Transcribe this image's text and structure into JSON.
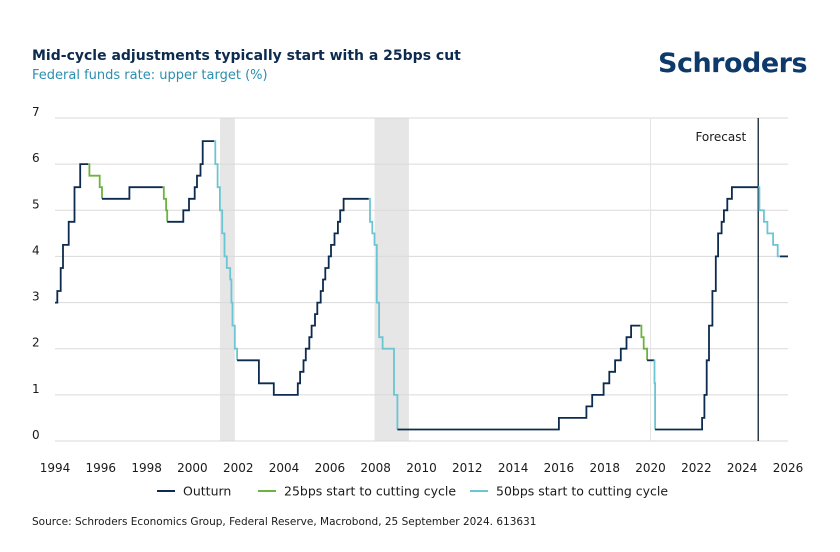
{
  "header": {
    "title": "Mid-cycle adjustments typically start with a 25bps cut",
    "subtitle": "Federal funds rate: upper target (%)",
    "logo": "Schroders"
  },
  "footer": {
    "source": "Source: Schroders Economics Group, Federal Reserve, Macrobond, 25 September 2024. 613631"
  },
  "chart_data": {
    "type": "line",
    "title": "Mid-cycle adjustments typically start with a 25bps cut",
    "subtitle": "Federal funds rate: upper target (%)",
    "xlim": [
      1994,
      2026
    ],
    "ylim": [
      0,
      7
    ],
    "x_ticks": [
      "1994",
      "1996",
      "1998",
      "2000",
      "2002",
      "2004",
      "2006",
      "2008",
      "2010",
      "2012",
      "2014",
      "2016",
      "2018",
      "2020",
      "2022",
      "2024",
      "2026"
    ],
    "y_ticks": [
      "0",
      "1",
      "2",
      "3",
      "4",
      "5",
      "6",
      "7"
    ],
    "grid": "horizontal",
    "legend_position": "bottom",
    "forecast_label": "Forecast",
    "forecast_start": 2024.7,
    "recessions": [
      [
        2001.2,
        2001.85
      ],
      [
        2007.95,
        2009.45
      ]
    ],
    "legend": [
      {
        "name": "Outturn",
        "color": "#0d2b4e"
      },
      {
        "name": "25bps start to cutting cycle",
        "color": "#6db33f"
      },
      {
        "name": "50bps start to cutting cycle",
        "color": "#6cc5d3"
      }
    ],
    "series": [
      {
        "name": "Outturn",
        "color": "#0d2b4e",
        "points": [
          [
            1994.0,
            3.0
          ],
          [
            1994.1,
            3.25
          ],
          [
            1994.25,
            3.75
          ],
          [
            1994.35,
            4.25
          ],
          [
            1994.6,
            4.75
          ],
          [
            1994.85,
            5.5
          ],
          [
            1995.1,
            6.0
          ],
          [
            1995.45,
            6.0
          ]
        ]
      },
      {
        "name": "25bps start to cutting cycle",
        "color": "#6db33f",
        "points": [
          [
            1995.45,
            6.0
          ],
          [
            1995.5,
            5.75
          ],
          [
            1995.95,
            5.5
          ],
          [
            1996.05,
            5.25
          ]
        ]
      },
      {
        "name": "Outturn",
        "color": "#0d2b4e",
        "points": [
          [
            1996.05,
            5.25
          ],
          [
            1997.2,
            5.25
          ],
          [
            1997.25,
            5.5
          ],
          [
            1998.7,
            5.5
          ]
        ]
      },
      {
        "name": "25bps start to cutting cycle",
        "color": "#6db33f",
        "points": [
          [
            1998.7,
            5.5
          ],
          [
            1998.75,
            5.25
          ],
          [
            1998.85,
            5.0
          ],
          [
            1998.9,
            4.75
          ]
        ]
      },
      {
        "name": "Outturn",
        "color": "#0d2b4e",
        "points": [
          [
            1998.9,
            4.75
          ],
          [
            1999.45,
            4.75
          ],
          [
            1999.6,
            5.0
          ],
          [
            1999.85,
            5.25
          ],
          [
            2000.1,
            5.5
          ],
          [
            2000.2,
            5.75
          ],
          [
            2000.35,
            6.0
          ],
          [
            2000.45,
            6.5
          ],
          [
            2000.95,
            6.5
          ]
        ]
      },
      {
        "name": "50bps start to cutting cycle",
        "color": "#6cc5d3",
        "points": [
          [
            2000.95,
            6.5
          ],
          [
            2001.0,
            6.0
          ],
          [
            2001.1,
            5.5
          ],
          [
            2001.2,
            5.0
          ],
          [
            2001.3,
            4.5
          ],
          [
            2001.4,
            4.0
          ],
          [
            2001.5,
            3.75
          ],
          [
            2001.65,
            3.5
          ],
          [
            2001.7,
            3.0
          ],
          [
            2001.75,
            2.5
          ],
          [
            2001.85,
            2.0
          ],
          [
            2001.95,
            1.75
          ]
        ]
      },
      {
        "name": "Outturn",
        "color": "#0d2b4e",
        "points": [
          [
            2001.95,
            1.75
          ],
          [
            2002.85,
            1.75
          ],
          [
            2002.9,
            1.25
          ],
          [
            2003.5,
            1.25
          ],
          [
            2003.55,
            1.0
          ],
          [
            2004.5,
            1.0
          ],
          [
            2004.6,
            1.25
          ],
          [
            2004.7,
            1.5
          ],
          [
            2004.85,
            1.75
          ],
          [
            2004.95,
            2.0
          ],
          [
            2005.1,
            2.25
          ],
          [
            2005.2,
            2.5
          ],
          [
            2005.35,
            2.75
          ],
          [
            2005.45,
            3.0
          ],
          [
            2005.6,
            3.25
          ],
          [
            2005.7,
            3.5
          ],
          [
            2005.8,
            3.75
          ],
          [
            2005.95,
            4.0
          ],
          [
            2006.05,
            4.25
          ],
          [
            2006.2,
            4.5
          ],
          [
            2006.35,
            4.75
          ],
          [
            2006.45,
            5.0
          ],
          [
            2006.6,
            5.25
          ],
          [
            2007.7,
            5.25
          ]
        ]
      },
      {
        "name": "50bps start to cutting cycle",
        "color": "#6cc5d3",
        "points": [
          [
            2007.7,
            5.25
          ],
          [
            2007.75,
            4.75
          ],
          [
            2007.85,
            4.5
          ],
          [
            2007.95,
            4.25
          ],
          [
            2008.05,
            3.0
          ],
          [
            2008.15,
            2.25
          ],
          [
            2008.3,
            2.0
          ],
          [
            2008.75,
            2.0
          ],
          [
            2008.8,
            1.0
          ],
          [
            2008.95,
            0.25
          ]
        ]
      },
      {
        "name": "Outturn",
        "color": "#0d2b4e",
        "points": [
          [
            2008.95,
            0.25
          ],
          [
            2015.95,
            0.25
          ],
          [
            2016.0,
            0.5
          ],
          [
            2016.95,
            0.5
          ],
          [
            2017.2,
            0.75
          ],
          [
            2017.45,
            1.0
          ],
          [
            2017.95,
            1.25
          ],
          [
            2018.2,
            1.5
          ],
          [
            2018.45,
            1.75
          ],
          [
            2018.7,
            2.0
          ],
          [
            2018.95,
            2.25
          ],
          [
            2019.15,
            2.5
          ],
          [
            2019.55,
            2.5
          ]
        ]
      },
      {
        "name": "25bps start to cutting cycle",
        "color": "#6db33f",
        "points": [
          [
            2019.55,
            2.5
          ],
          [
            2019.6,
            2.25
          ],
          [
            2019.7,
            2.0
          ],
          [
            2019.85,
            1.75
          ]
        ]
      },
      {
        "name": "Outturn",
        "color": "#0d2b4e",
        "points": [
          [
            2019.85,
            1.75
          ],
          [
            2020.15,
            1.75
          ]
        ]
      },
      {
        "name": "50bps start to cutting cycle",
        "color": "#6cc5d3",
        "points": [
          [
            2020.15,
            1.75
          ],
          [
            2020.17,
            1.25
          ],
          [
            2020.2,
            0.25
          ]
        ]
      },
      {
        "name": "Outturn",
        "color": "#0d2b4e",
        "points": [
          [
            2020.2,
            0.25
          ],
          [
            2022.2,
            0.25
          ],
          [
            2022.25,
            0.5
          ],
          [
            2022.35,
            1.0
          ],
          [
            2022.45,
            1.75
          ],
          [
            2022.55,
            2.5
          ],
          [
            2022.7,
            3.25
          ],
          [
            2022.85,
            4.0
          ],
          [
            2022.95,
            4.5
          ],
          [
            2023.1,
            4.75
          ],
          [
            2023.2,
            5.0
          ],
          [
            2023.35,
            5.25
          ],
          [
            2023.55,
            5.5
          ],
          [
            2024.7,
            5.5
          ]
        ]
      },
      {
        "name": "50bps start to cutting cycle",
        "color": "#6cc5d3",
        "points": [
          [
            2024.7,
            5.5
          ],
          [
            2024.75,
            5.0
          ],
          [
            2024.95,
            4.75
          ],
          [
            2025.1,
            4.5
          ],
          [
            2025.35,
            4.25
          ],
          [
            2025.55,
            4.0
          ],
          [
            2025.65,
            4.0
          ]
        ]
      },
      {
        "name": "Outturn",
        "color": "#0d2b4e",
        "points": [
          [
            2025.65,
            4.0
          ],
          [
            2026.0,
            4.0
          ]
        ]
      }
    ]
  }
}
